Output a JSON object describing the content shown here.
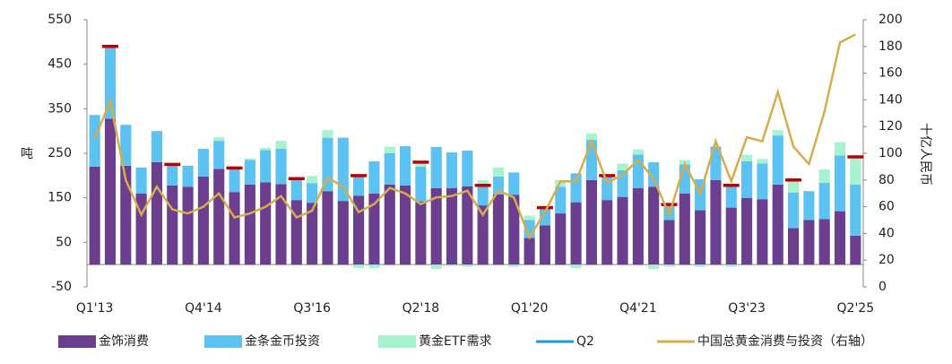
{
  "chart_data": {
    "type": "bar",
    "stacked": true,
    "y_label": "吨",
    "y2_label": "十亿人民币",
    "categories": [
      "Q1'13",
      null,
      null,
      null,
      null,
      null,
      null,
      "Q4'14",
      null,
      null,
      null,
      null,
      null,
      null,
      "Q3'16",
      null,
      null,
      null,
      null,
      null,
      null,
      "Q2'18",
      null,
      null,
      null,
      null,
      null,
      null,
      "Q1'20",
      null,
      null,
      null,
      null,
      null,
      null,
      "Q4'21",
      null,
      null,
      null,
      null,
      null,
      null,
      "Q3'23",
      null,
      null,
      null,
      null,
      null,
      null,
      "Q2'25"
    ],
    "series": [
      {
        "name": "金饰消费",
        "type": "bar",
        "color": "#6b3f8e",
        "values": [
          220,
          328,
          222,
          160,
          230,
          178,
          175,
          198,
          215,
          163,
          180,
          185,
          181,
          145,
          139,
          165,
          143,
          155,
          160,
          180,
          178,
          142,
          172,
          172,
          176,
          133,
          158,
          157,
          60,
          88,
          115,
          140,
          190,
          145,
          152,
          172,
          175,
          100,
          160,
          122,
          190,
          128,
          150,
          147,
          180,
          82,
          100,
          102,
          120,
          65
        ]
      },
      {
        "name": "金条金币投资",
        "type": "bar",
        "color": "#5bc2f2",
        "values": [
          116,
          162,
          92,
          58,
          70,
          47,
          47,
          62,
          63,
          54,
          55,
          72,
          79,
          45,
          44,
          120,
          142,
          45,
          72,
          70,
          88,
          78,
          92,
          80,
          80,
          45,
          40,
          50,
          40,
          40,
          60,
          65,
          90,
          55,
          60,
          75,
          55,
          35,
          65,
          70,
          75,
          50,
          82,
          80,
          110,
          80,
          65,
          82,
          125,
          115
        ]
      },
      {
        "name": "黄金ETF需求",
        "type": "bar",
        "color": "#a8f3cf",
        "values": [
          0,
          0,
          0,
          0,
          0,
          0,
          0,
          0,
          8,
          0,
          3,
          5,
          18,
          0,
          16,
          17,
          0,
          -8,
          -8,
          15,
          0,
          12,
          -10,
          -3,
          -5,
          12,
          20,
          -5,
          10,
          0,
          15,
          -8,
          15,
          0,
          15,
          12,
          -10,
          -5,
          10,
          -5,
          0,
          -5,
          15,
          10,
          12,
          25,
          0,
          30,
          30,
          62
        ]
      },
      {
        "name": "Q2",
        "type": "marker",
        "color": "#c00000",
        "values": [
          null,
          490,
          null,
          null,
          null,
          225,
          null,
          null,
          null,
          217,
          null,
          null,
          null,
          193,
          null,
          null,
          null,
          200,
          null,
          null,
          null,
          230,
          null,
          null,
          null,
          178,
          null,
          null,
          null,
          128,
          null,
          null,
          null,
          200,
          null,
          null,
          null,
          135,
          null,
          null,
          null,
          178,
          null,
          null,
          null,
          190,
          null,
          null,
          null,
          242
        ]
      },
      {
        "name": "中国总黄金消费与投资（右轴）",
        "type": "line",
        "axis": "y2",
        "color": "#d6ac4c",
        "values": [
          111,
          139,
          80,
          54,
          75,
          58,
          55,
          60,
          70,
          52,
          55,
          60,
          68,
          52,
          57,
          82,
          75,
          56,
          62,
          74,
          70,
          62,
          67,
          68,
          72,
          54,
          72,
          67,
          37,
          56,
          79,
          79,
          109,
          78,
          84,
          95,
          81,
          54,
          92,
          70,
          109,
          79,
          112,
          109,
          146,
          105,
          92,
          131,
          183,
          189
        ]
      }
    ],
    "ylim": [
      -50,
      550
    ],
    "yticks": [
      -50,
      50,
      150,
      250,
      350,
      450,
      550
    ],
    "y2lim": [
      0,
      200
    ],
    "y2ticks": [
      0,
      20,
      40,
      60,
      80,
      100,
      120,
      140,
      160,
      180,
      200
    ]
  }
}
